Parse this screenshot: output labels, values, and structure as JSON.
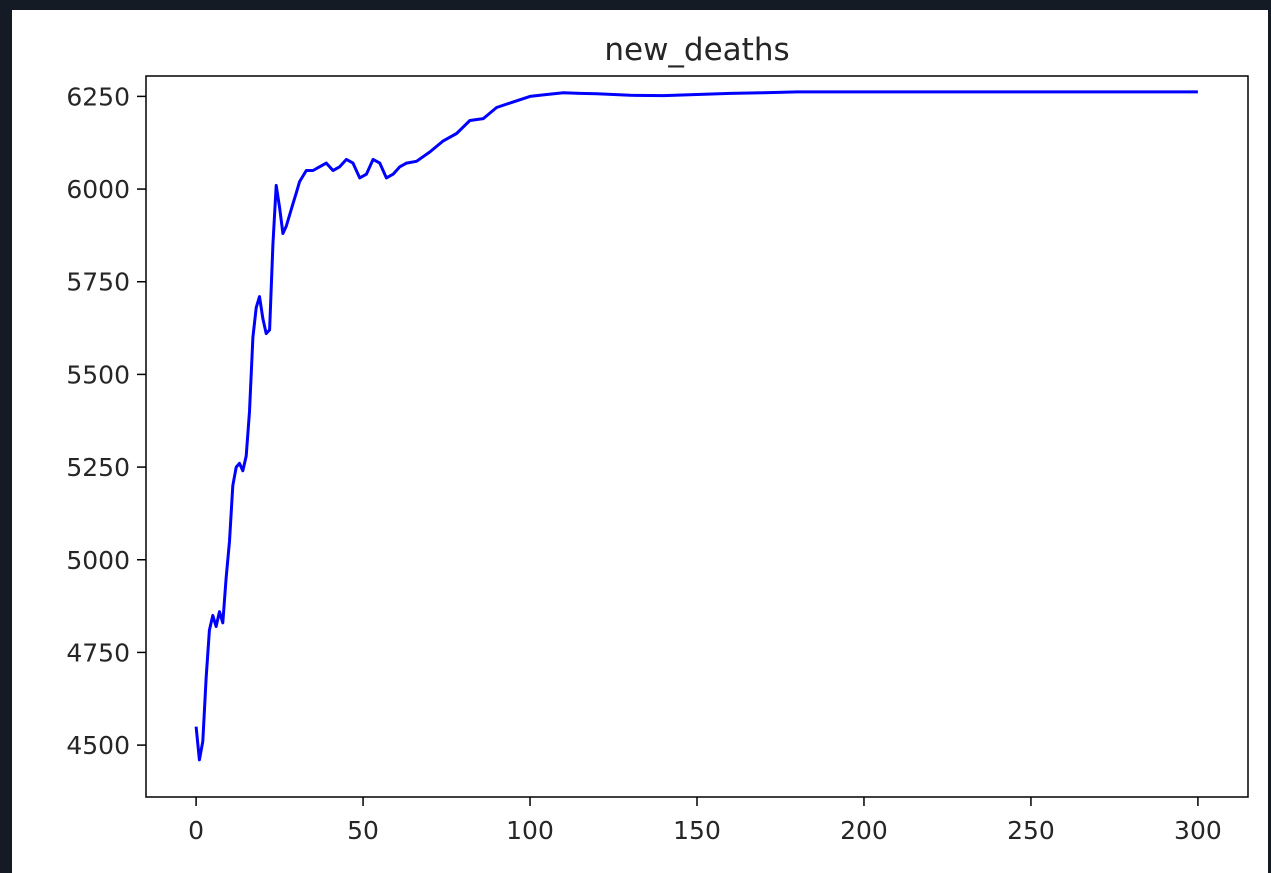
{
  "chart_data": {
    "type": "line",
    "title": "new_deaths",
    "xlabel": "",
    "ylabel": "",
    "xlim": [
      -15,
      315
    ],
    "ylim": [
      4360,
      6305
    ],
    "x_ticks": [
      0,
      50,
      100,
      150,
      200,
      250,
      300
    ],
    "y_ticks": [
      4500,
      4750,
      5000,
      5250,
      5500,
      5750,
      6000,
      6250
    ],
    "grid": false,
    "line_color": "#0000ff",
    "series": [
      {
        "x": [
          0,
          1,
          2,
          3,
          4,
          5,
          6,
          7,
          8,
          9,
          10,
          11,
          12,
          13,
          14,
          15,
          16,
          17,
          18,
          19,
          20,
          21,
          22,
          23,
          24,
          25,
          26,
          27,
          28,
          29,
          30,
          31,
          33,
          35,
          37,
          39,
          41,
          43,
          45,
          47,
          49,
          51,
          53,
          55,
          57,
          59,
          61,
          63,
          66,
          70,
          74,
          78,
          82,
          86,
          90,
          95,
          100,
          105,
          110,
          115,
          120,
          130,
          140,
          150,
          160,
          170,
          180,
          190,
          200,
          220,
          240,
          260,
          280,
          300
        ],
        "values": [
          4550,
          4460,
          4510,
          4680,
          4810,
          4850,
          4820,
          4860,
          4830,
          4950,
          5050,
          5200,
          5250,
          5260,
          5240,
          5280,
          5400,
          5600,
          5680,
          5710,
          5650,
          5610,
          5620,
          5850,
          6010,
          5950,
          5880,
          5900,
          5930,
          5960,
          5990,
          6020,
          6050,
          6050,
          6060,
          6070,
          6050,
          6060,
          6080,
          6070,
          6030,
          6040,
          6080,
          6070,
          6030,
          6040,
          6060,
          6070,
          6075,
          6100,
          6130,
          6150,
          6185,
          6190,
          6220,
          6235,
          6250,
          6255,
          6260,
          6258,
          6257,
          6253,
          6252,
          6255,
          6258,
          6260,
          6262,
          6262,
          6262,
          6262,
          6262,
          6262,
          6262,
          6262
        ]
      }
    ]
  }
}
